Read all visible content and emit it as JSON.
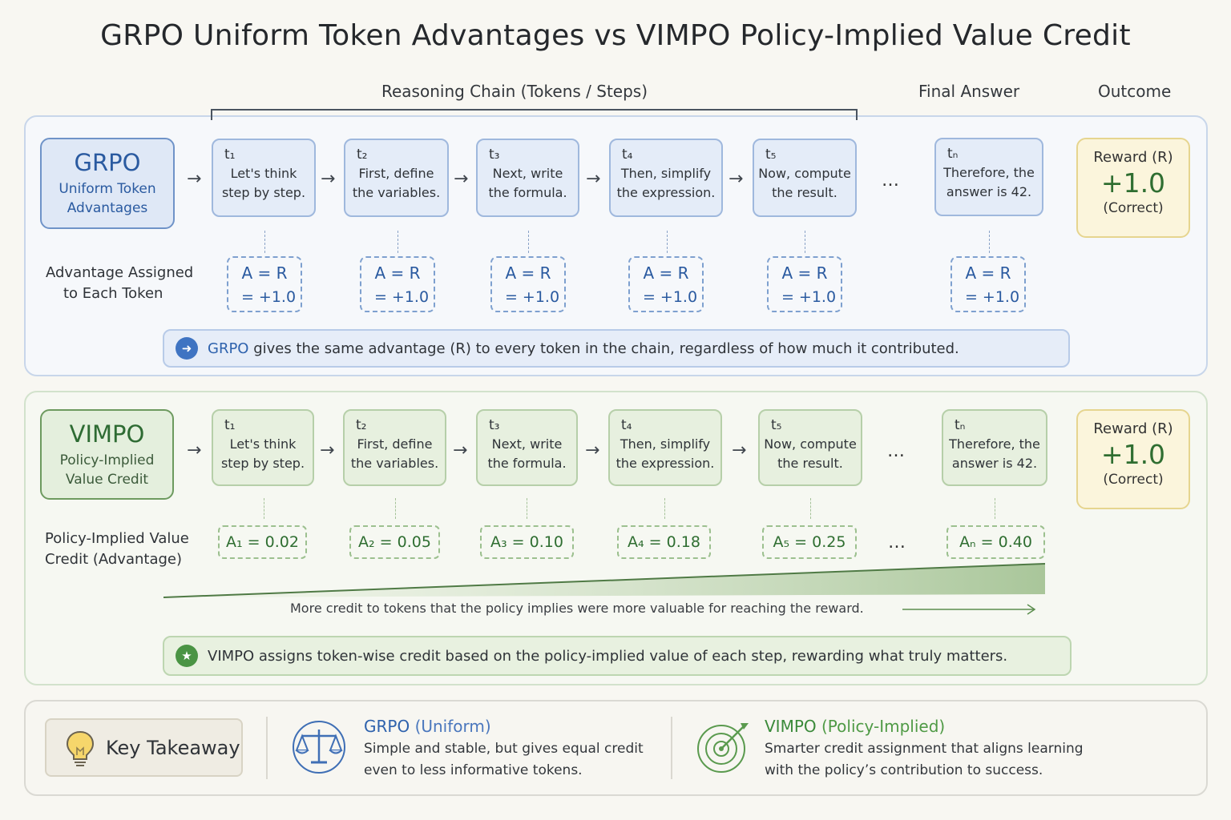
{
  "title": "GRPO Uniform Token Advantages vs VIMPO Policy-Implied Value Credit",
  "headers": {
    "chain": "Reasoning Chain (Tokens / Steps)",
    "final_answer": "Final Answer",
    "outcome": "Outcome"
  },
  "grpo": {
    "name": "GRPO",
    "subtitle": [
      "Uniform Token",
      "Advantages"
    ],
    "tokens": [
      {
        "label": "t₁",
        "lines": [
          "Let's think",
          "step by step."
        ]
      },
      {
        "label": "t₂",
        "lines": [
          "First, define",
          "the variables."
        ]
      },
      {
        "label": "t₃",
        "lines": [
          "Next, write",
          "the formula."
        ]
      },
      {
        "label": "t₄",
        "lines": [
          "Then, simplify",
          "the expression."
        ]
      },
      {
        "label": "t₅",
        "lines": [
          "Now, compute",
          "the result."
        ]
      },
      {
        "label": "tₙ",
        "lines": [
          "Therefore, the",
          "answer is 42."
        ]
      }
    ],
    "ellipsis": "…",
    "reward": {
      "label": "Reward (R)",
      "value": "+1.0",
      "note": "(Correct)"
    },
    "side_label": [
      "Advantage Assigned",
      "to Each Token"
    ],
    "advantage": {
      "line1": "A = R",
      "line2": "= +1.0"
    },
    "banner_highlight": "GRPO",
    "banner_text": " gives the same advantage (R) to every token in the chain, regardless of how much it contributed."
  },
  "vimpo": {
    "name": "VIMPO",
    "subtitle": [
      "Policy-Implied",
      "Value Credit"
    ],
    "tokens": [
      {
        "label": "t₁",
        "lines": [
          "Let's think",
          "step by step."
        ]
      },
      {
        "label": "t₂",
        "lines": [
          "First, define",
          "the variables."
        ]
      },
      {
        "label": "t₃",
        "lines": [
          "Next, write",
          "the formula."
        ]
      },
      {
        "label": "t₄",
        "lines": [
          "Then, simplify",
          "the expression."
        ]
      },
      {
        "label": "t₅",
        "lines": [
          "Now, compute",
          "the result."
        ]
      },
      {
        "label": "tₙ",
        "lines": [
          "Therefore, the",
          "answer is 42."
        ]
      }
    ],
    "ellipsis": "…",
    "reward": {
      "label": "Reward (R)",
      "value": "+1.0",
      "note": "(Correct)"
    },
    "side_label": [
      "Policy-Implied Value",
      "Credit (Advantage)"
    ],
    "advantages": [
      "A₁ = 0.02",
      "A₂ = 0.05",
      "A₃ = 0.10",
      "A₄ = 0.18",
      "A₅ = 0.25",
      "Aₙ = 0.40"
    ],
    "ramp_caption": "More credit to tokens that the policy implies were more valuable for reaching the reward.",
    "banner_text": "VIMPO assigns token-wise credit based on the policy-implied value of each step, rewarding what truly matters."
  },
  "takeaway": {
    "label": "Key Takeaway",
    "grpo_title": "GRPO",
    "grpo_qualifier": "(Uniform)",
    "grpo_body": [
      "Simple and stable, but gives equal credit",
      "even to less informative tokens."
    ],
    "vimpo_title": "VIMPO",
    "vimpo_qualifier": "(Policy-Implied)",
    "vimpo_body": [
      "Smarter credit assignment that aligns learning",
      "with the policy’s contribution to success."
    ]
  },
  "colors": {
    "grpo_blue": "#2a5aa0",
    "vimpo_green": "#2f6e31",
    "reward_bg": "#fbf5dc"
  }
}
